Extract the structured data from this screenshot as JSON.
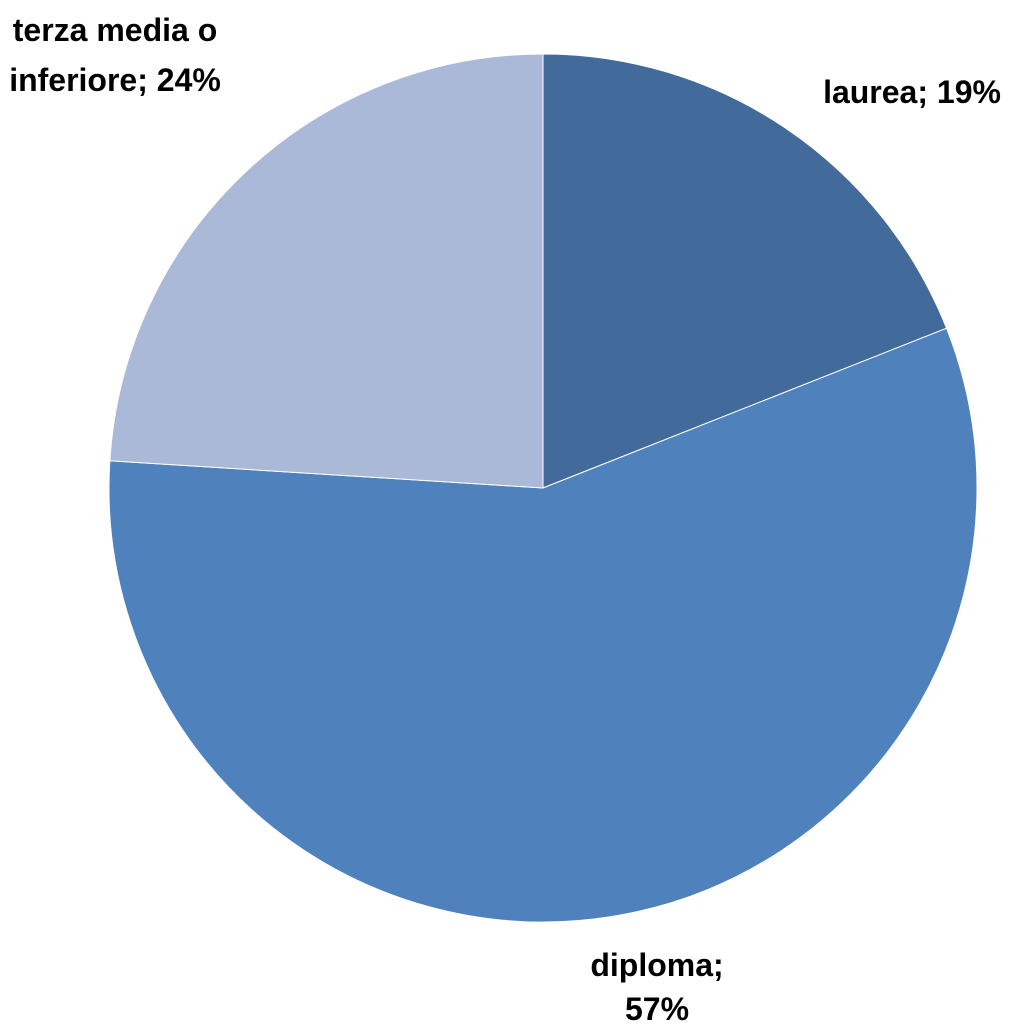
{
  "chart_data": {
    "type": "pie",
    "values": [
      19,
      57,
      24
    ],
    "value_labels": [
      "laurea; 19%",
      "diploma; 57%",
      "terza media o inferiore; 24%"
    ],
    "colors": [
      "#426a9b",
      "#4f81bd",
      "#aab9d7"
    ]
  }
}
